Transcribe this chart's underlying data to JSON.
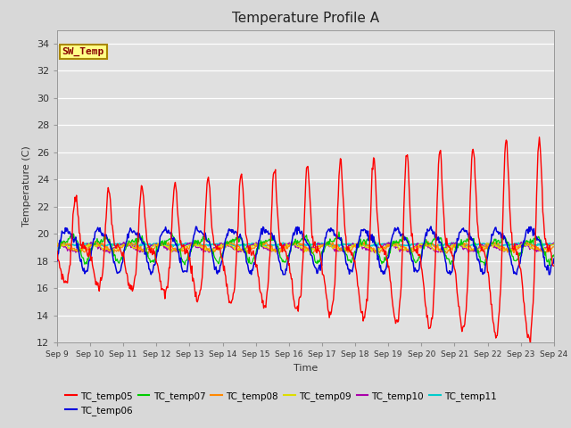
{
  "title": "Temperature Profile A",
  "xlabel": "Time",
  "ylabel": "Temperature (C)",
  "ylim": [
    12,
    35
  ],
  "yticks": [
    12,
    14,
    16,
    18,
    20,
    22,
    24,
    26,
    28,
    30,
    32,
    34
  ],
  "xtick_labels": [
    "Sep 9",
    "Sep 10",
    "Sep 11",
    "Sep 12",
    "Sep 13",
    "Sep 14",
    "Sep 15",
    "Sep 16",
    "Sep 17",
    "Sep 18",
    "Sep 19",
    "Sep 20",
    "Sep 21",
    "Sep 22",
    "Sep 23",
    "Sep 24"
  ],
  "fig_bg_color": "#d8d8d8",
  "plot_bg_color": "#e0e0e0",
  "sw_temp_color": "#ff0000",
  "tc06_color": "#0000dd",
  "tc07_color": "#00cc00",
  "tc08_color": "#ff8800",
  "tc09_color": "#dddd00",
  "tc10_color": "#aa00aa",
  "tc11_color": "#00cccc",
  "sw_label": "SW_Temp",
  "sw_box_color": "#ffff88",
  "sw_box_edge": "#aa8800"
}
